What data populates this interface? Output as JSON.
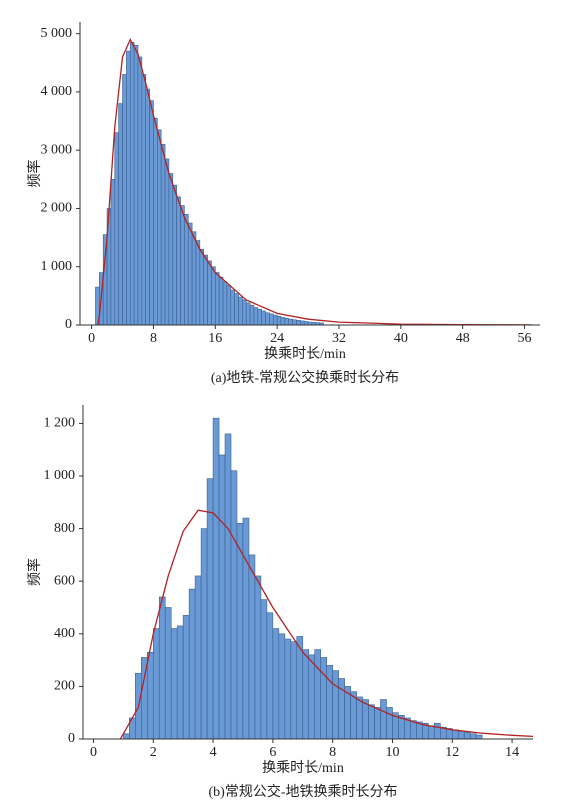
{
  "chart_data": [
    {
      "type": "histogram",
      "color": "#6a9ad6",
      "ylabel": "频率",
      "xlabel": "换乘时长/min",
      "caption": "(a)地铁-常规公交换乘时长分布",
      "xlim": [
        -1.5,
        58
      ],
      "ylim": [
        0,
        5200
      ],
      "xticks": [
        0,
        8,
        16,
        24,
        32,
        40,
        48,
        56
      ],
      "yticks": [
        0,
        {
          "value": 1000,
          "label": "1 000"
        },
        {
          "value": 2000,
          "label": "2 000"
        },
        {
          "value": 3000,
          "label": "3 000"
        },
        {
          "value": 4000,
          "label": "4 000"
        },
        {
          "value": 5000,
          "label": "5 000"
        }
      ],
      "bins": [
        0.5,
        1,
        1.5,
        2,
        2.5,
        3,
        3.5,
        4,
        4.5,
        5,
        5.5,
        6,
        6.5,
        7,
        7.5,
        8,
        8.5,
        9,
        9.5,
        10,
        10.5,
        11,
        11.5,
        12,
        12.5,
        13,
        13.5,
        14,
        14.5,
        15,
        15.5,
        16,
        16.5,
        17,
        17.5,
        18,
        18.5,
        19,
        19.5,
        20,
        20.5,
        21,
        21.5,
        22,
        22.5,
        23,
        23.5,
        24,
        24.5,
        25,
        25.5,
        26,
        26.5,
        27,
        27.5,
        28,
        28.5,
        29,
        29.5,
        30
      ],
      "counts": [
        650,
        900,
        1550,
        2000,
        2500,
        3300,
        3800,
        4300,
        4700,
        4850,
        4800,
        4600,
        4300,
        4050,
        3850,
        3550,
        3350,
        3100,
        2850,
        2600,
        2400,
        2200,
        2050,
        1900,
        1750,
        1600,
        1450,
        1300,
        1200,
        1100,
        1000,
        900,
        820,
        740,
        680,
        600,
        540,
        480,
        430,
        380,
        340,
        300,
        270,
        240,
        210,
        190,
        170,
        150,
        130,
        115,
        100,
        90,
        80,
        70,
        60,
        50,
        45,
        40,
        35
      ],
      "curve": {
        "color": "#b22222",
        "x": [
          0.8,
          1,
          2,
          3,
          4,
          5,
          6,
          7,
          8,
          10,
          12,
          14,
          16,
          20,
          24,
          28,
          32,
          40,
          48,
          57
        ],
        "y": [
          0,
          150,
          1500,
          3400,
          4600,
          4900,
          4650,
          4150,
          3600,
          2600,
          1850,
          1300,
          900,
          430,
          200,
          100,
          50,
          15,
          5,
          2
        ]
      }
    },
    {
      "type": "histogram",
      "color": "#6a9ad6",
      "ylabel": "频率",
      "xlabel": "换乘时长/min",
      "caption": "(b)常规公交-地铁换乘时长分布",
      "xlim": [
        -0.35,
        14.7
      ],
      "ylim": [
        0,
        1270
      ],
      "xticks": [
        0,
        2,
        4,
        6,
        8,
        10,
        12,
        14
      ],
      "yticks": [
        0,
        200,
        400,
        600,
        800,
        {
          "value": 1000,
          "label": "1 000"
        },
        {
          "value": 1200,
          "label": "1 200"
        }
      ],
      "bins": [
        1,
        1.2,
        1.4,
        1.6,
        1.8,
        2,
        2.2,
        2.4,
        2.6,
        2.8,
        3,
        3.2,
        3.4,
        3.6,
        3.8,
        4,
        4.2,
        4.4,
        4.6,
        4.8,
        5,
        5.2,
        5.4,
        5.6,
        5.8,
        6,
        6.2,
        6.4,
        6.6,
        6.8,
        7,
        7.2,
        7.4,
        7.6,
        7.8,
        8,
        8.2,
        8.4,
        8.6,
        8.8,
        9,
        9.2,
        9.4,
        9.6,
        9.8,
        10,
        10.2,
        10.4,
        10.6,
        10.8,
        11,
        11.2,
        11.4,
        11.6,
        11.8,
        12,
        12.2,
        12.4,
        12.6,
        12.8,
        13
      ],
      "counts": [
        20,
        80,
        250,
        310,
        330,
        420,
        540,
        500,
        420,
        430,
        470,
        570,
        620,
        800,
        990,
        1220,
        1080,
        1160,
        1020,
        820,
        840,
        700,
        620,
        530,
        480,
        420,
        400,
        380,
        370,
        390,
        340,
        320,
        340,
        310,
        280,
        260,
        230,
        200,
        180,
        160,
        150,
        130,
        120,
        150,
        120,
        100,
        90,
        80,
        70,
        65,
        60,
        50,
        60,
        45,
        40,
        35,
        30,
        25,
        20,
        15
      ],
      "curve": {
        "color": "#b22222",
        "x": [
          0.9,
          1.5,
          2,
          2.5,
          3,
          3.5,
          4,
          4.5,
          5,
          6,
          7,
          8,
          9,
          10,
          11,
          12,
          13,
          14,
          14.7
        ],
        "y": [
          0,
          120,
          400,
          620,
          790,
          870,
          860,
          800,
          700,
          500,
          330,
          210,
          140,
          90,
          55,
          35,
          22,
          14,
          10
        ]
      }
    }
  ]
}
